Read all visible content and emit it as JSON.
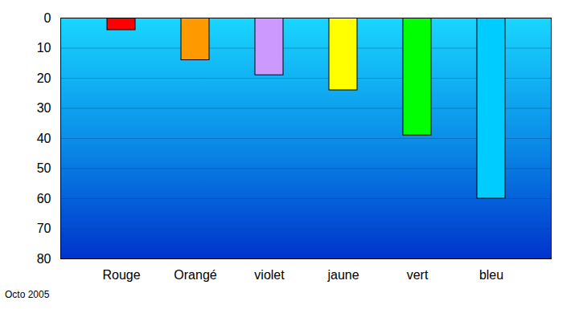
{
  "chart_data": {
    "type": "bar",
    "categories": [
      "Rouge",
      "Orangé",
      "violet",
      "jaune",
      "vert",
      "bleu"
    ],
    "values": [
      4,
      14,
      19,
      24,
      39,
      60
    ],
    "colors": [
      "#ff0000",
      "#ff9900",
      "#cc99ff",
      "#ffff00",
      "#00ff00",
      "#00ccff"
    ],
    "ylim": [
      0,
      80
    ],
    "yticks": [
      0,
      10,
      20,
      30,
      40,
      50,
      60,
      70,
      80
    ],
    "grid": true,
    "caption": "Octo 2005"
  }
}
